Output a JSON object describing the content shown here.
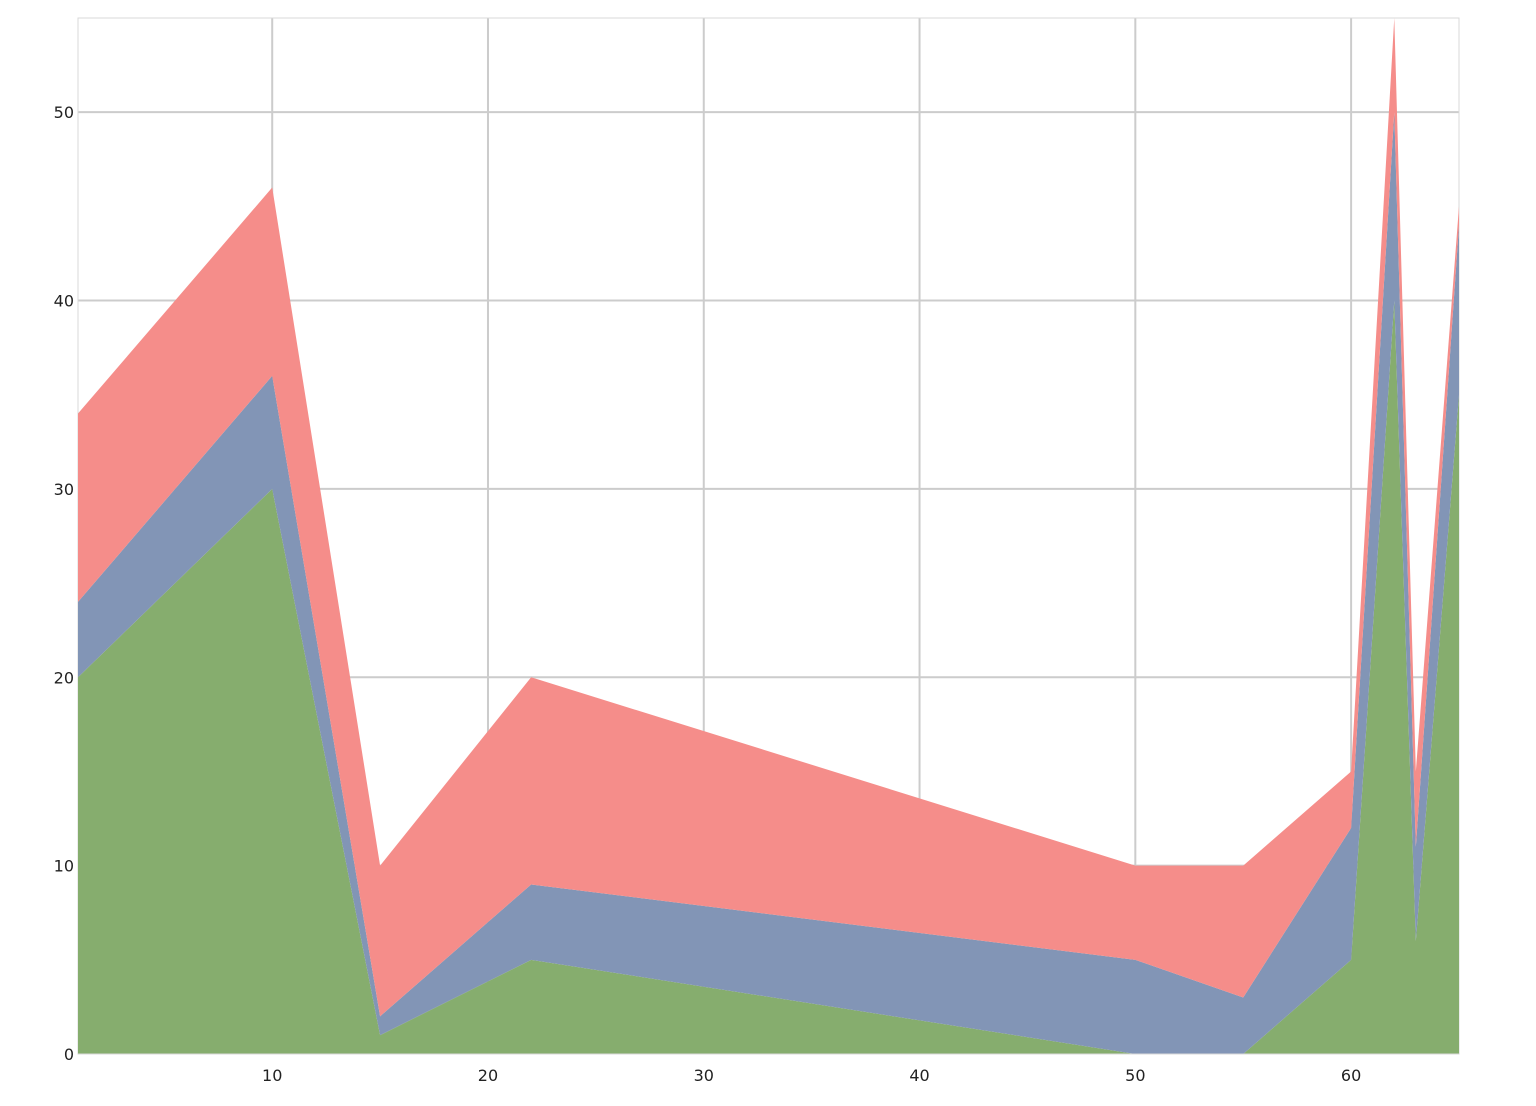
{
  "chart_data": {
    "type": "area",
    "stacked": true,
    "title": "",
    "xlabel": "",
    "ylabel": "",
    "xlim": [
      1,
      65
    ],
    "ylim": [
      0,
      55
    ],
    "x_ticks": [
      10,
      20,
      30,
      40,
      50,
      60
    ],
    "y_ticks": [
      0,
      10,
      20,
      30,
      40,
      50
    ],
    "grid": true,
    "x": [
      1,
      10,
      15,
      22,
      50,
      55,
      60,
      62,
      63,
      65
    ],
    "series": [
      {
        "values": [
          20,
          30,
          1,
          5,
          0,
          0,
          5,
          40,
          6,
          35
        ],
        "color": "#86AD6E"
      },
      {
        "values": [
          4,
          6,
          1,
          4,
          5,
          3,
          7,
          10,
          5,
          9
        ],
        "color": "#8295B6"
      },
      {
        "values": [
          10,
          10,
          8,
          11,
          5,
          7,
          3,
          5,
          4,
          1
        ],
        "color": "#F58D8A"
      }
    ],
    "grid_color": "#cccccc",
    "border_color": "#d9d9d9"
  }
}
